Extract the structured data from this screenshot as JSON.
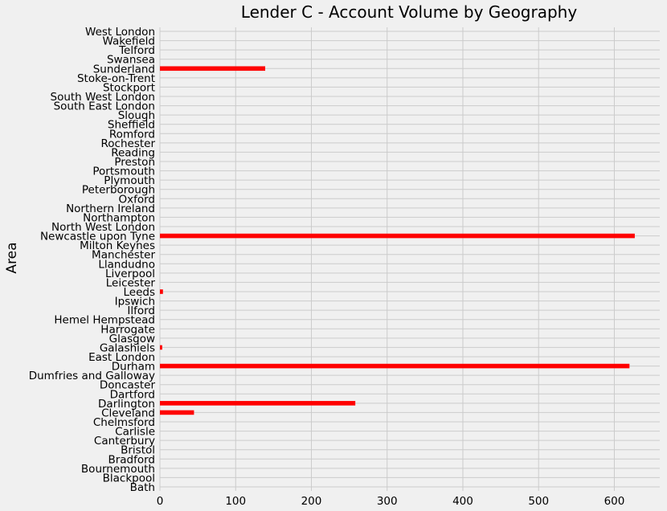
{
  "chart_data": {
    "type": "bar",
    "orientation": "horizontal",
    "title": "Lender C - Account Volume by Geography",
    "xlabel": "",
    "ylabel": "Area",
    "xlim": [
      0,
      660
    ],
    "xticks": [
      0,
      100,
      200,
      300,
      400,
      500,
      600
    ],
    "grid": true,
    "bar_color": "#ff0000",
    "background_color": "#f0f0f0",
    "grid_color": "#cbcbcb",
    "categories": [
      "Bath",
      "Blackpool",
      "Bournemouth",
      "Bradford",
      "Bristol",
      "Canterbury",
      "Carlisle",
      "Chelmsford",
      "Cleveland",
      "Darlington",
      "Dartford",
      "Doncaster",
      "Dumfries and Galloway",
      "Durham",
      "East London",
      "Galashiels",
      "Glasgow",
      "Harrogate",
      "Hemel Hempstead",
      "Ilford",
      "Ipswich",
      "Leeds",
      "Leicester",
      "Liverpool",
      "Llandudno",
      "Manchester",
      "Milton Keynes",
      "Newcastle upon Tyne",
      "North West London",
      "Northampton",
      "Northern Ireland",
      "Oxford",
      "Peterborough",
      "Plymouth",
      "Portsmouth",
      "Preston",
      "Reading",
      "Rochester",
      "Romford",
      "Sheffield",
      "Slough",
      "South East London",
      "South West London",
      "Stockport",
      "Stoke-on-Trent",
      "Sunderland",
      "Swansea",
      "Telford",
      "Wakefield",
      "West London"
    ],
    "values": [
      0,
      0,
      0,
      0,
      0,
      0,
      0,
      0,
      45,
      258,
      0,
      0,
      0,
      620,
      0,
      3,
      0,
      0,
      0,
      0,
      0,
      4,
      0,
      0,
      0,
      0,
      0,
      627,
      0,
      0,
      0,
      0,
      0,
      0,
      0,
      0,
      0,
      0,
      0,
      0,
      0,
      0,
      0,
      0,
      0,
      139,
      0,
      0,
      0,
      0
    ]
  }
}
